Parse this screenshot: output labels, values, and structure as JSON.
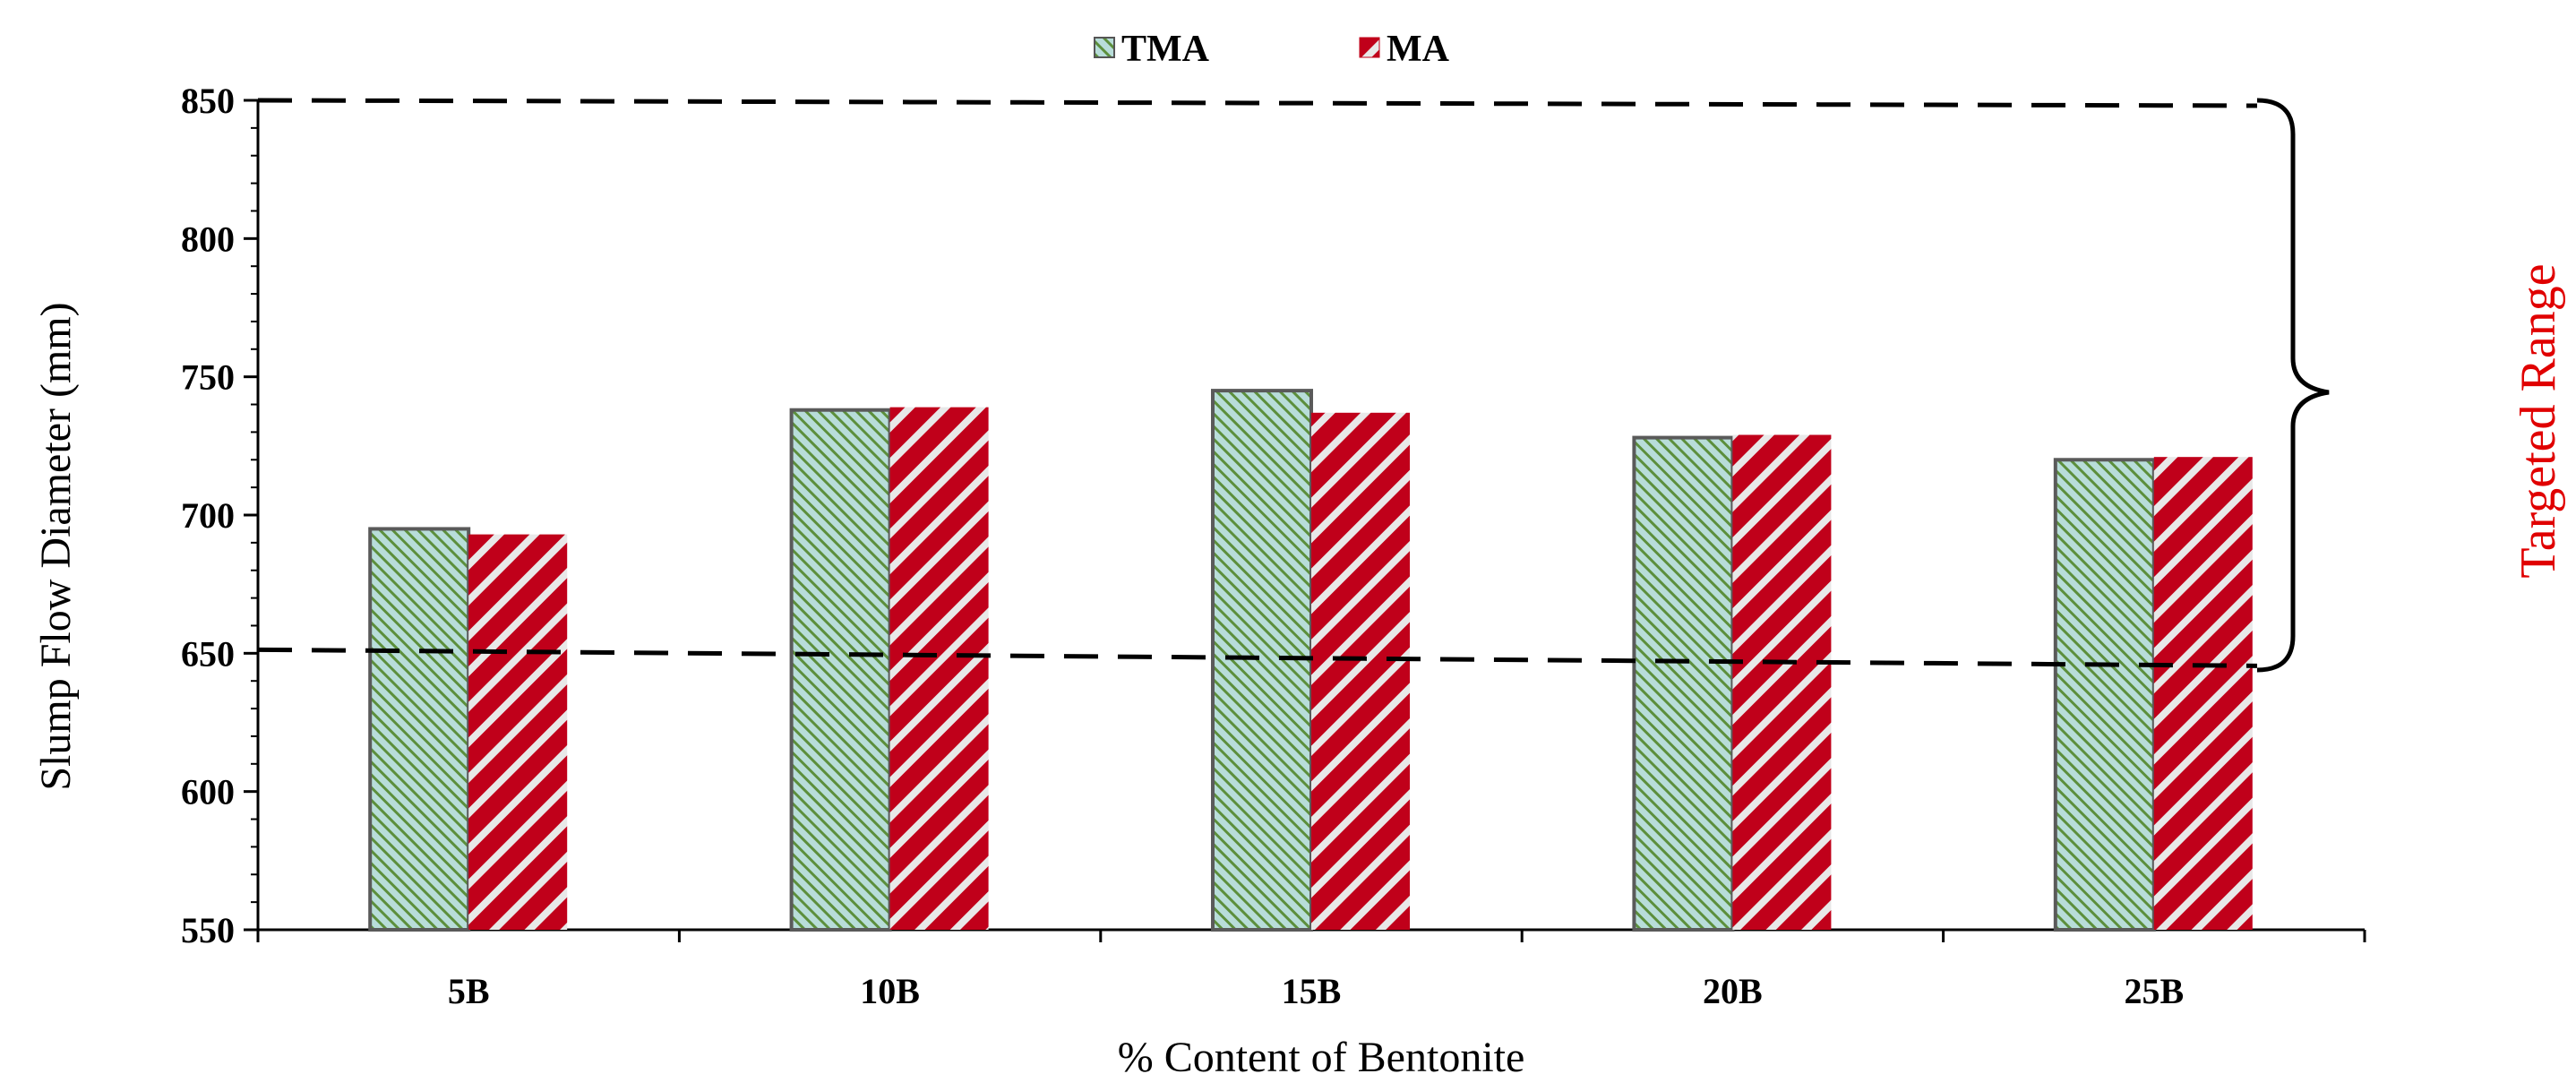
{
  "chart_data": {
    "type": "bar",
    "title": "",
    "xlabel": "% Content of Bentonite",
    "ylabel": "Slump Flow Diameter (mm)",
    "categories": [
      "5B",
      "10B",
      "15B",
      "20B",
      "25B"
    ],
    "series": [
      {
        "name": "TMA",
        "values": [
          695,
          738,
          745,
          728,
          720
        ],
        "color": "#b8ddd9",
        "pattern": "fine-diagonal-green"
      },
      {
        "name": "MA",
        "values": [
          693,
          739,
          737,
          729,
          721
        ],
        "color": "#c0001a",
        "pattern": "wide-diagonal-white"
      }
    ],
    "ylim": [
      550,
      850
    ],
    "yticks": [
      550,
      600,
      650,
      700,
      750,
      800,
      850
    ],
    "grid": false,
    "legend_position": "top-center",
    "reference_lines": [
      {
        "label": "upper limit",
        "value": 850
      },
      {
        "label": "lower limit",
        "value": 650
      }
    ],
    "annotation": {
      "text": "Targeted Range",
      "color": "#e00000"
    }
  }
}
